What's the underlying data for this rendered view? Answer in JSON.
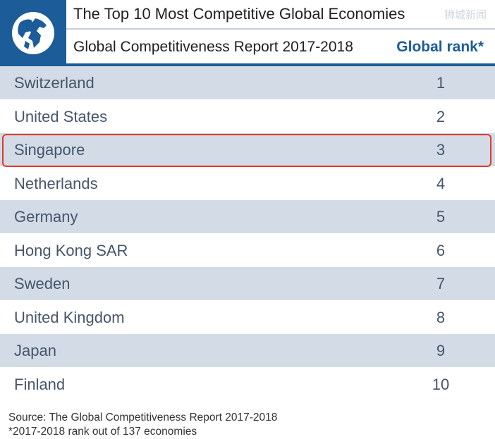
{
  "header": {
    "title": "The Top 10 Most Competitive Global Economies",
    "subtitle": "Global Competitiveness Report 2017-2018",
    "rank_column": "Global rank*",
    "watermark": "狮城新闻"
  },
  "chart_data": {
    "type": "table",
    "title": "The Top 10 Most Competitive Global Economies",
    "subtitle": "Global Competitiveness Report 2017-2018",
    "columns": [
      "",
      "Global rank*"
    ],
    "rows": [
      {
        "country": "Switzerland",
        "rank": "1"
      },
      {
        "country": "United States",
        "rank": "2"
      },
      {
        "country": "Singapore",
        "rank": "3",
        "highlighted": true
      },
      {
        "country": "Netherlands",
        "rank": "4"
      },
      {
        "country": "Germany",
        "rank": "5"
      },
      {
        "country": "Hong Kong SAR",
        "rank": "6"
      },
      {
        "country": "Sweden",
        "rank": "7"
      },
      {
        "country": "United Kingdom",
        "rank": "8"
      },
      {
        "country": "Japan",
        "rank": "9"
      },
      {
        "country": "Finland",
        "rank": "10"
      }
    ],
    "highlight_color": "#e03a2a"
  },
  "footer": {
    "source": "Source: The Global Competitiveness Report 2017-2018",
    "note": "*2017-2018 rank out of 137 economies"
  },
  "colors": {
    "brand_blue": "#1c5d99",
    "row_shade": "#d3dbe6",
    "text": "#45566b"
  }
}
